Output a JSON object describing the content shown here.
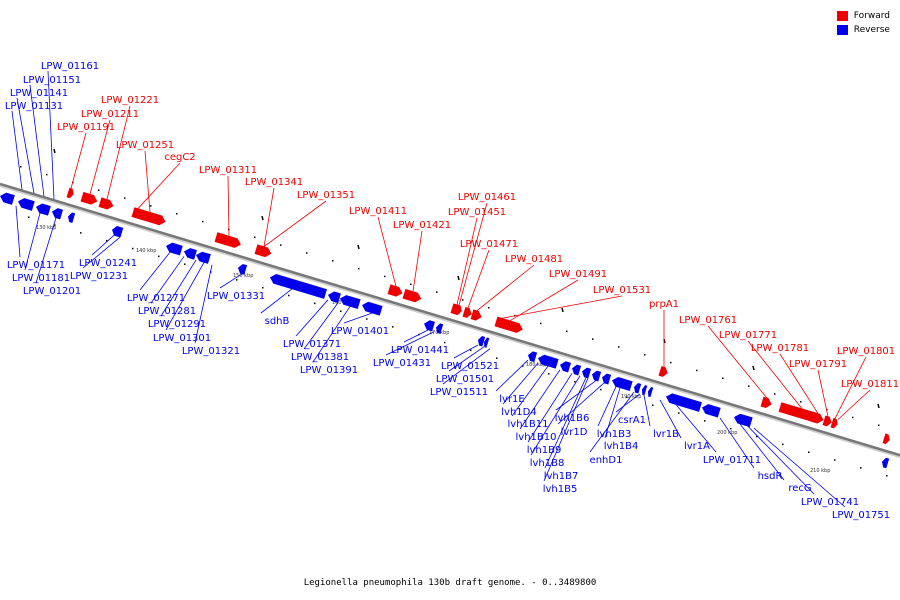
{
  "colors": {
    "forward": "#ee0000",
    "reverse": "#0000ee",
    "backbone": "#888888",
    "connector_f": "#ee0000",
    "connector_r": "#0000ee"
  },
  "legend": [
    {
      "label": "Forward",
      "color": "#ee0000"
    },
    {
      "label": "Reverse",
      "color": "#0000ee"
    }
  ],
  "caption": "Legionella pneumophila 130b draft genome. - 0..3489800",
  "ticks": [
    "130 kbp",
    "140 kbp",
    "150 kbp",
    "160 kbp",
    "170 kbp",
    "180 kbp",
    "190 kbp",
    "200 kbp",
    "210 kbp"
  ],
  "forward_genes": [
    {
      "name": "LPW_01191"
    },
    {
      "name": "LPW_01211"
    },
    {
      "name": "LPW_01221"
    },
    {
      "name": "LPW_01251"
    },
    {
      "name": "cegC2"
    },
    {
      "name": "LPW_01311"
    },
    {
      "name": "LPW_01341"
    },
    {
      "name": "LPW_01351"
    },
    {
      "name": "LPW_01411"
    },
    {
      "name": "LPW_01421"
    },
    {
      "name": "LPW_01451"
    },
    {
      "name": "LPW_01461"
    },
    {
      "name": "LPW_01471"
    },
    {
      "name": "LPW_01481"
    },
    {
      "name": "LPW_01491"
    },
    {
      "name": "LPW_01531"
    },
    {
      "name": "prpA1"
    },
    {
      "name": "LPW_01761"
    },
    {
      "name": "LPW_01771"
    },
    {
      "name": "LPW_01781"
    },
    {
      "name": "LPW_01791"
    },
    {
      "name": "LPW_01801"
    },
    {
      "name": "LPW_01811"
    }
  ],
  "reverse_genes": [
    {
      "name": "LPW_01131"
    },
    {
      "name": "LPW_01141"
    },
    {
      "name": "LPW_01151"
    },
    {
      "name": "LPW_01161"
    },
    {
      "name": "LPW_01171"
    },
    {
      "name": "LPW_01181"
    },
    {
      "name": "LPW_01201"
    },
    {
      "name": "LPW_01241"
    },
    {
      "name": "LPW_01231"
    },
    {
      "name": "LPW_01271"
    },
    {
      "name": "LPW_01281"
    },
    {
      "name": "LPW_01291"
    },
    {
      "name": "LPW_01301"
    },
    {
      "name": "LPW_01321"
    },
    {
      "name": "LPW_01331"
    },
    {
      "name": "sdhB"
    },
    {
      "name": "LPW_01371"
    },
    {
      "name": "LPW_01381"
    },
    {
      "name": "LPW_01391"
    },
    {
      "name": "LPW_01401"
    },
    {
      "name": "LPW_01441"
    },
    {
      "name": "LPW_01431"
    },
    {
      "name": "LPW_01521"
    },
    {
      "name": "LPW_01501"
    },
    {
      "name": "LPW_01511"
    },
    {
      "name": "lvr1E"
    },
    {
      "name": "lvh1D4"
    },
    {
      "name": "lvh1B11"
    },
    {
      "name": "lvh1B10"
    },
    {
      "name": "lvh1B9"
    },
    {
      "name": "lvh1B8"
    },
    {
      "name": "lvh1B7"
    },
    {
      "name": "lvh1B5"
    },
    {
      "name": "lvh1B6"
    },
    {
      "name": "lvr1D"
    },
    {
      "name": "lvh1B3"
    },
    {
      "name": "lvh1B4"
    },
    {
      "name": "enhD1"
    },
    {
      "name": "csrA1"
    },
    {
      "name": "lvr1B"
    },
    {
      "name": "lvr1A"
    },
    {
      "name": "LPW_01711"
    },
    {
      "name": "hsdR"
    },
    {
      "name": "recG"
    },
    {
      "name": "LPW_01741"
    },
    {
      "name": "LPW_01751"
    }
  ]
}
